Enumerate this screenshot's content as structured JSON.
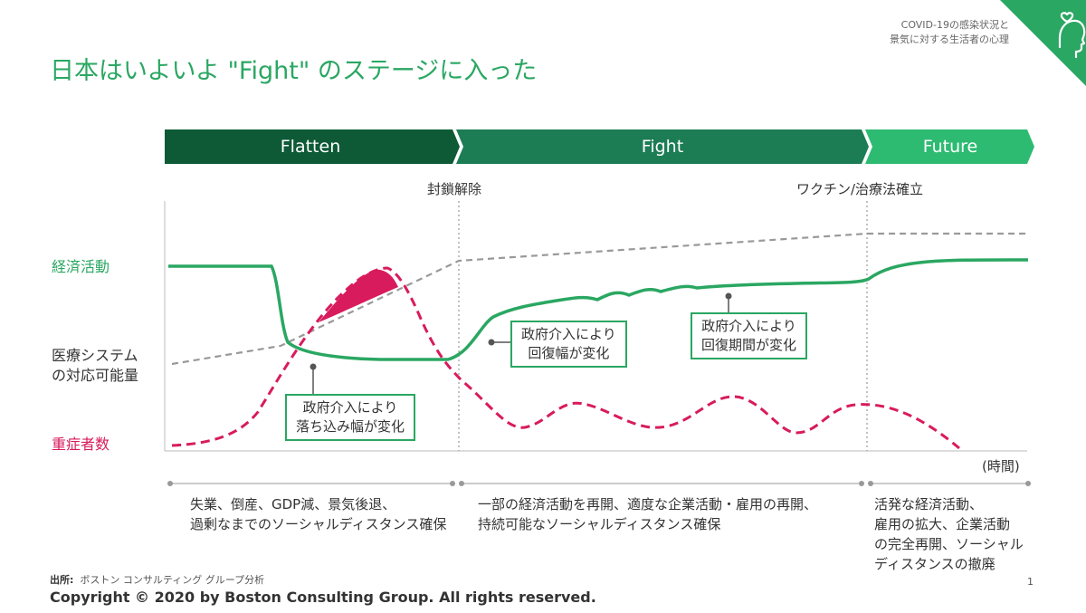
{
  "title": "日本はいよいよ \"Fight\" のステージに入った",
  "header_note": [
    "COVID-19の感染状況と",
    "景気に対する生活者の心理"
  ],
  "phases": [
    "Flatten",
    "Fight",
    "Future"
  ],
  "milestones": {
    "lockdown_lift": "封鎖解除",
    "vaccine": "ワクチン/治療法確立"
  },
  "y_labels": {
    "economy": "経済活動",
    "capacity": [
      "医療システム",
      "の対応可能量"
    ],
    "severe": "重症者数"
  },
  "x_label": "(時間)",
  "callouts": {
    "flatten": [
      "政府介入により",
      "落ち込み幅が変化"
    ],
    "fight_a": [
      "政府介入により",
      "回復幅が変化"
    ],
    "fight_b": [
      "政府介入により",
      "回復期間が変化"
    ]
  },
  "descriptions": {
    "flatten": [
      "失業、倒産、GDP減、景気後退、",
      "過剰なまでのソーシャルディスタンス確保"
    ],
    "fight": [
      "一部の経済活動を再開、適度な企業活動・雇用の再開、",
      "持続可能なソーシャルディスタンス確保"
    ],
    "future": [
      "活発な経済活動、",
      "雇用の拡大、企業活動",
      "の完全再開、ソーシャル",
      "ディスタンスの撤廃"
    ]
  },
  "source_label": "出所:",
  "source_text": "ボストン コンサルティング グループ分析",
  "copyright": "Copyright © 2020 by Boston Consulting Group. All rights reserved.",
  "page_number": "1",
  "colors": {
    "green": "#2aa762",
    "dark_green": "#0e5a36",
    "mid_green": "#1c7d55",
    "light_green": "#2dbb72",
    "pink": "#d81b5c",
    "gray": "#999999"
  },
  "icon": "head-heart-icon"
}
